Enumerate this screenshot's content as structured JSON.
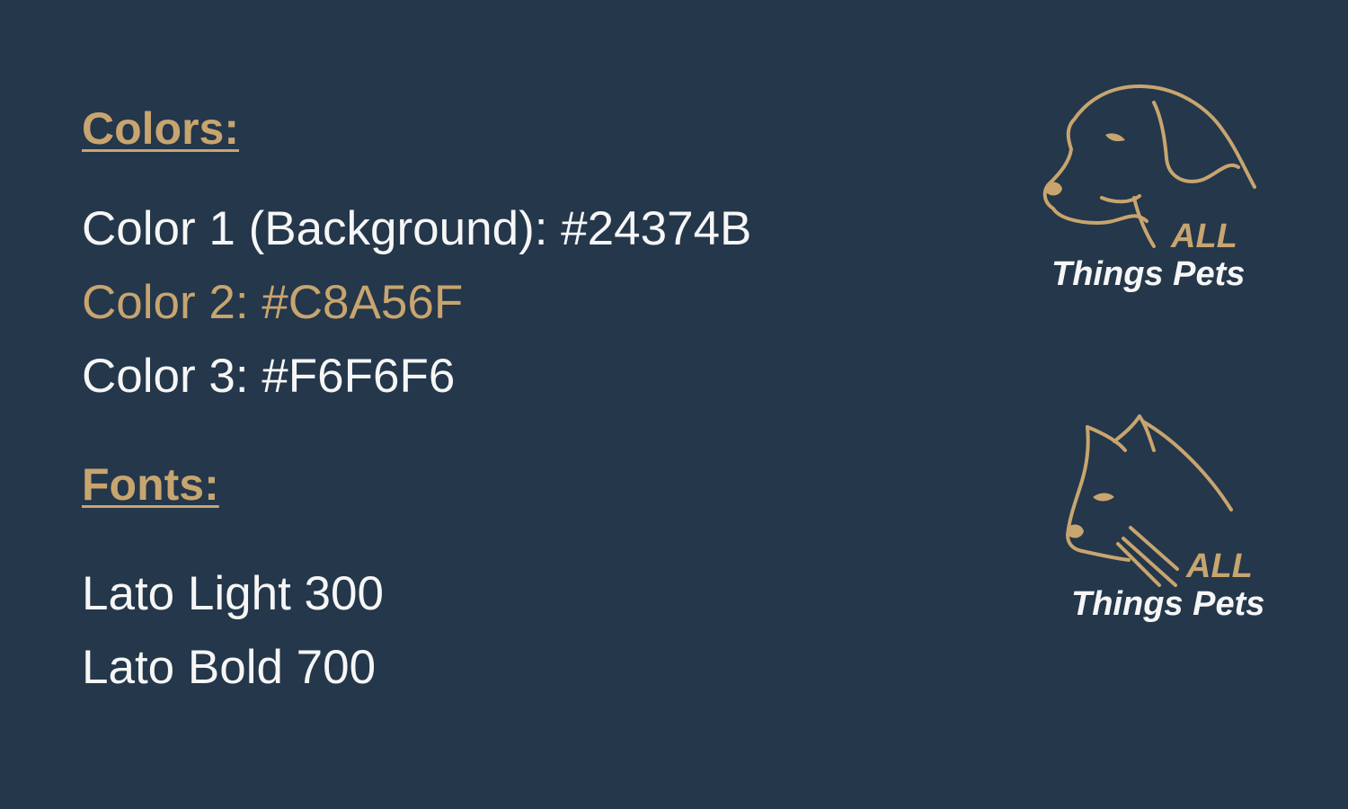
{
  "theme": {
    "background": "#24374B",
    "accent": "#C8A56F",
    "text": "#F6F6F6"
  },
  "colors_section": {
    "heading": "Colors:",
    "lines": [
      "Color 1 (Background): #24374B",
      "Color 2: #C8A56F",
      "Color 3: #F6F6F6"
    ]
  },
  "fonts_section": {
    "heading": "Fonts:",
    "lines": [
      "Lato Light 300",
      "Lato Bold 700"
    ]
  },
  "logos": {
    "dog": {
      "icon": "dog-head-icon",
      "all": "ALL",
      "name": "Things Pets"
    },
    "cat": {
      "icon": "cat-head-icon",
      "all": "ALL",
      "name": "Things Pets"
    }
  }
}
